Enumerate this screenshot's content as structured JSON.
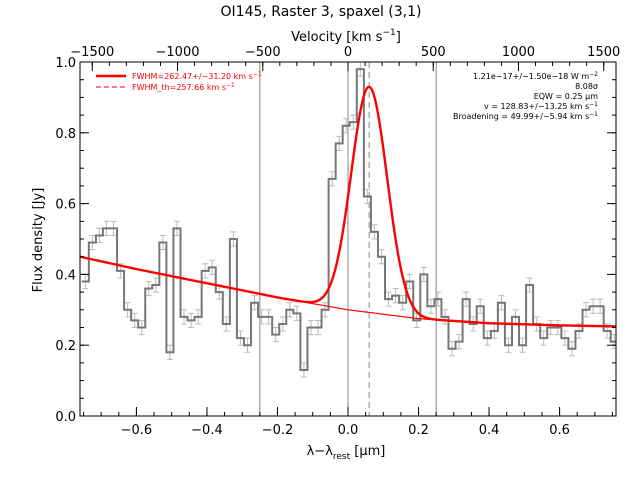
{
  "chart_data": {
    "type": "line",
    "title": "OI145, Raster 3, spaxel (3,1)",
    "xlabel": "λ−λ",
    "xlabel_sub": "rest",
    "xlabel_unit": " [μm]",
    "ylabel": "Flux density [Jy]",
    "top_axis_label": "Velocity [km s",
    "top_axis_label_sup": "−1",
    "top_axis_label_end": "]",
    "xlim": [
      -0.76,
      0.76
    ],
    "ylim": [
      0.0,
      1.0
    ],
    "top_xlim": [
      -1572,
      1572
    ],
    "x_ticks": [
      -0.6,
      -0.4,
      -0.2,
      0.0,
      0.2,
      0.4,
      0.6
    ],
    "x_tick_labels": [
      "−0.6",
      "−0.4",
      "−0.2",
      "0.0",
      "0.2",
      "0.4",
      "0.6"
    ],
    "y_ticks": [
      0.0,
      0.2,
      0.4,
      0.6,
      0.8,
      1.0
    ],
    "y_tick_labels": [
      "0.0",
      "0.2",
      "0.4",
      "0.6",
      "0.8",
      "1.0"
    ],
    "top_ticks": [
      -1500,
      -1000,
      -500,
      0,
      500,
      1000,
      1500
    ],
    "top_tick_labels": [
      "−1500",
      "−1000",
      "−500",
      "0",
      "500",
      "1000",
      "1500"
    ],
    "vertical_lines": [
      -0.25,
      0.0,
      0.25
    ],
    "dashed_line": 0.06,
    "legend": [
      {
        "label": "FWHM=262.47+/−31.20 km s",
        "sup": "−1",
        "style": "solid"
      },
      {
        "label": "FWHM_th=257.66 km s",
        "sup": "−1",
        "style": "dashed"
      }
    ],
    "annotations": [
      {
        "text": "1.21e−17+/−1.50e−18 W m",
        "sup": "−2"
      },
      {
        "text": "8.08σ",
        "sup": ""
      },
      {
        "text": "EQW = 0.25 μm",
        "sup": ""
      },
      {
        "text": "v = 128.83+/−13.25 km s",
        "sup": "−1"
      },
      {
        "text": "Broadening = 49.99+/−5.94 km s",
        "sup": "−1"
      }
    ],
    "colors": {
      "spectrum": "#777777",
      "errorbar": "#bbbbbb",
      "fit": "#ff0000",
      "lines": "#888888"
    },
    "spectrum": {
      "x": [
        -0.745,
        -0.725,
        -0.705,
        -0.685,
        -0.665,
        -0.645,
        -0.625,
        -0.605,
        -0.585,
        -0.565,
        -0.545,
        -0.525,
        -0.505,
        -0.485,
        -0.465,
        -0.445,
        -0.425,
        -0.405,
        -0.385,
        -0.365,
        -0.345,
        -0.325,
        -0.305,
        -0.285,
        -0.265,
        -0.245,
        -0.225,
        -0.205,
        -0.185,
        -0.165,
        -0.145,
        -0.125,
        -0.105,
        -0.085,
        -0.065,
        -0.045,
        -0.025,
        -0.005,
        0.015,
        0.035,
        0.055,
        0.075,
        0.095,
        0.115,
        0.135,
        0.155,
        0.175,
        0.195,
        0.215,
        0.235,
        0.255,
        0.275,
        0.295,
        0.315,
        0.335,
        0.355,
        0.375,
        0.395,
        0.415,
        0.435,
        0.455,
        0.475,
        0.495,
        0.515,
        0.535,
        0.555,
        0.575,
        0.595,
        0.615,
        0.635,
        0.655,
        0.675,
        0.695,
        0.715,
        0.735,
        0.755
      ],
      "y": [
        0.38,
        0.49,
        0.51,
        0.53,
        0.53,
        0.41,
        0.3,
        0.27,
        0.25,
        0.36,
        0.37,
        0.49,
        0.18,
        0.53,
        0.28,
        0.27,
        0.28,
        0.41,
        0.42,
        0.35,
        0.26,
        0.5,
        0.22,
        0.2,
        0.32,
        0.28,
        0.28,
        0.23,
        0.26,
        0.3,
        0.29,
        0.13,
        0.25,
        0.25,
        0.3,
        0.67,
        0.77,
        0.82,
        0.83,
        0.98,
        0.62,
        0.52,
        0.45,
        0.33,
        0.34,
        0.32,
        0.38,
        0.27,
        0.4,
        0.31,
        0.33,
        0.28,
        0.19,
        0.21,
        0.33,
        0.26,
        0.31,
        0.22,
        0.24,
        0.32,
        0.2,
        0.28,
        0.2,
        0.37,
        0.26,
        0.22,
        0.25,
        0.25,
        0.22,
        0.19,
        0.24,
        0.3,
        0.31,
        0.31,
        0.24,
        0.21
      ],
      "err": 0.02
    },
    "fit": {
      "continuum_x": [
        -0.76,
        -0.6,
        -0.4,
        -0.2,
        0.0,
        0.2,
        0.4,
        0.6,
        0.76
      ],
      "continuum_y": [
        0.45,
        0.415,
        0.375,
        0.335,
        0.3,
        0.275,
        0.262,
        0.256,
        0.253
      ],
      "gauss_center": 0.0,
      "gauss_peak_flux": 0.93,
      "gauss_sigma": 0.051
    }
  }
}
